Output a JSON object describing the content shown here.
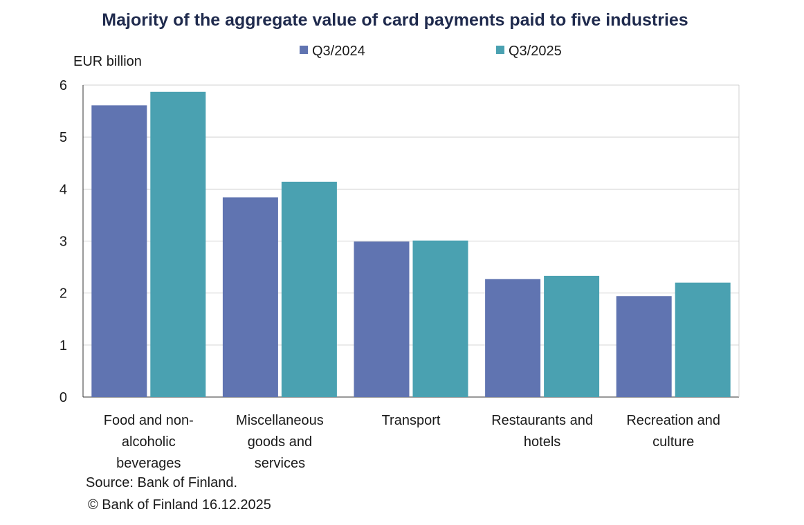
{
  "chart_data": {
    "type": "bar",
    "title": "Majority of the aggregate value of card payments paid to five industries",
    "ylabel": "EUR billion",
    "xlabel": "",
    "ylim": [
      0,
      6
    ],
    "yticks": [
      0,
      1,
      2,
      3,
      4,
      5,
      6
    ],
    "grid": true,
    "legend_position": "top",
    "categories": [
      [
        "Food and non-",
        "alcoholic",
        "beverages"
      ],
      [
        "Miscellaneous",
        "goods and",
        "services"
      ],
      [
        "Transport"
      ],
      [
        "Restaurants and",
        "hotels"
      ],
      [
        "Recreation and",
        "culture"
      ]
    ],
    "series": [
      {
        "name": "Q3/2024",
        "color": "#6074b1",
        "values": [
          5.61,
          3.84,
          2.99,
          2.27,
          1.94
        ]
      },
      {
        "name": "Q3/2025",
        "color": "#4aa1b1",
        "values": [
          5.87,
          4.14,
          3.01,
          2.33,
          2.2
        ]
      }
    ]
  },
  "footer": {
    "source": "Source: Bank of Finland.",
    "copyright": "© Bank of Finland 16.12.2025"
  }
}
